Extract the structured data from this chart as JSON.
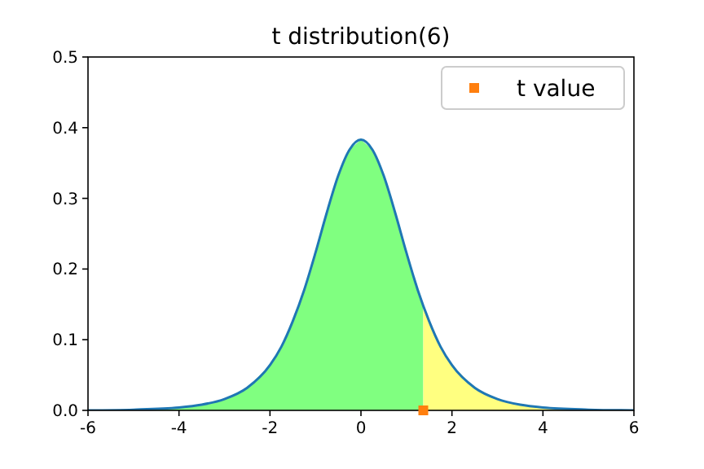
{
  "chart_data": {
    "type": "line",
    "title": "t distribution(6)",
    "xlim": [
      -6,
      6
    ],
    "xticks": [
      -6,
      -4,
      -2,
      0,
      2,
      4,
      6
    ],
    "ylim": [
      0,
      0.5
    ],
    "yticks": [
      {
        "value": 0,
        "label": "0.0"
      },
      {
        "value": 0.1,
        "label": "0.1"
      },
      {
        "value": 0.2,
        "label": "0.2"
      },
      {
        "value": 0.3,
        "label": "0.3"
      },
      {
        "value": 0.4,
        "label": "0.4"
      },
      {
        "value": 0.5,
        "label": "0.5"
      }
    ],
    "grid": false,
    "legend": "top right",
    "series": [
      {
        "type": "area",
        "color": "#80ff80",
        "x": [
          -6,
          -5,
          -4,
          -3.5,
          -3,
          -2.5,
          -2,
          -1.75,
          -1.5,
          -1.25,
          -1,
          -0.75,
          -0.5,
          -0.25,
          0,
          0.25,
          0.5,
          0.75,
          1,
          1.25,
          1.37
        ],
        "values": [
          0,
          0.001,
          0.004,
          0.008,
          0.016,
          0.032,
          0.064,
          0.09,
          0.126,
          0.17,
          0.223,
          0.28,
          0.332,
          0.369,
          0.383,
          0.369,
          0.332,
          0.28,
          0.223,
          0.17,
          0.148
        ]
      },
      {
        "type": "area",
        "color": "#ffff80",
        "x": [
          1.37,
          1.5,
          1.75,
          2,
          2.5,
          3,
          3.5,
          4,
          5,
          6
        ],
        "values": [
          0.148,
          0.126,
          0.09,
          0.064,
          0.032,
          0.016,
          0.008,
          0.004,
          0.001,
          0
        ]
      },
      {
        "color": "#1f77b4",
        "x": [
          -6,
          -5,
          -4,
          -3.5,
          -3,
          -2.5,
          -2,
          -1.75,
          -1.5,
          -1.25,
          -1,
          -0.75,
          -0.5,
          -0.25,
          0,
          0.25,
          0.5,
          0.75,
          1,
          1.25,
          1.5,
          1.75,
          2,
          2.5,
          3,
          3.5,
          4,
          5,
          6
        ],
        "values": [
          0,
          0.001,
          0.004,
          0.008,
          0.016,
          0.032,
          0.064,
          0.09,
          0.126,
          0.17,
          0.223,
          0.28,
          0.332,
          0.369,
          0.383,
          0.369,
          0.332,
          0.28,
          0.223,
          0.17,
          0.126,
          0.09,
          0.064,
          0.032,
          0.016,
          0.008,
          0.004,
          0.001,
          0
        ]
      },
      {
        "type": "scatter",
        "name": "t value",
        "color": "#ff7f0e",
        "marker": "square",
        "x": [
          1.37
        ],
        "values": [
          0
        ]
      }
    ]
  }
}
